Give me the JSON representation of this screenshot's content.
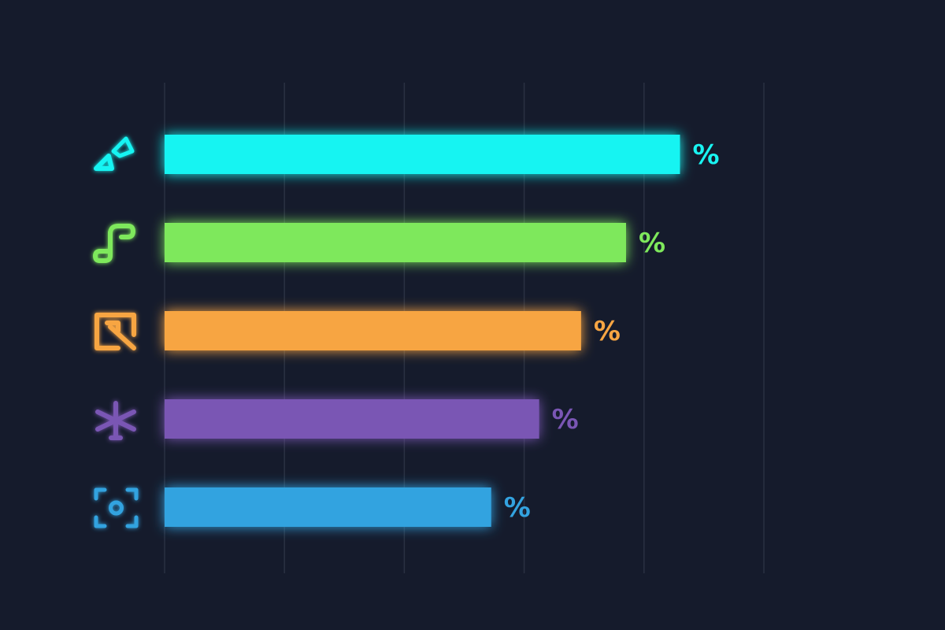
{
  "chart_data": {
    "type": "bar",
    "orientation": "horizontal",
    "xlim": [
      0,
      100
    ],
    "grid": true,
    "x_ticks": [
      0,
      20,
      40,
      60,
      80,
      100
    ],
    "background": "#151b2c",
    "gridline_color": "#2a3142",
    "bars": [
      {
        "icon": "diamond-pair-icon",
        "value": 86,
        "label": "%",
        "color": "#19f4f2"
      },
      {
        "icon": "music-note-icon",
        "value": 77,
        "label": "%",
        "color": "#7ee85c"
      },
      {
        "icon": "cursor-arrow-icon",
        "value": 69.5,
        "label": "%",
        "color": "#f7a543"
      },
      {
        "icon": "asterisk-icon",
        "value": 62.5,
        "label": "%",
        "color": "#7a56b4"
      },
      {
        "icon": "focus-frame-icon",
        "value": 54.5,
        "label": "%",
        "color": "#33a3e0"
      }
    ]
  }
}
